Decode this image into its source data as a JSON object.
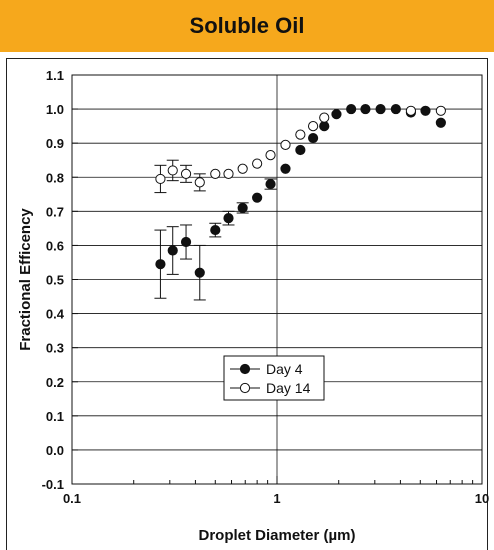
{
  "header": {
    "title": "Soluble Oil",
    "color": "#f6a81c"
  },
  "chart_data": {
    "type": "scatter",
    "title": "Soluble Oil",
    "xlabel": "Droplet Diameter (µm)",
    "ylabel": "Fractional Efficency",
    "xscale": "log",
    "xlim": [
      0.1,
      10
    ],
    "ylim": [
      -0.1,
      1.1
    ],
    "x_ticks": [
      "0.1",
      "1",
      "10"
    ],
    "y_ticks": [
      "-0.1",
      "0.0",
      "0.1",
      "0.2",
      "0.3",
      "0.4",
      "0.5",
      "0.6",
      "0.7",
      "0.8",
      "0.9",
      "1.0",
      "1.1"
    ],
    "grid": "horizontal lines at each 0.1, vertical line at x=1",
    "legend_position": "center",
    "series": [
      {
        "name": "Day 4",
        "marker": "filled-circle",
        "x": [
          0.27,
          0.31,
          0.36,
          0.42,
          0.5,
          0.58,
          0.68,
          0.8,
          0.93,
          1.1,
          1.3,
          1.5,
          1.7,
          1.95,
          2.3,
          2.7,
          3.2,
          3.8,
          4.5,
          5.3,
          6.3
        ],
        "y": [
          0.545,
          0.585,
          0.61,
          0.52,
          0.645,
          0.68,
          0.71,
          0.74,
          0.78,
          0.825,
          0.88,
          0.915,
          0.95,
          0.985,
          1.0,
          1.0,
          1.0,
          1.0,
          0.99,
          0.995,
          0.96
        ],
        "y_err": [
          0.1,
          0.07,
          0.05,
          0.08,
          0.02,
          0.02,
          0.015,
          0.01,
          0.015,
          0.01,
          0.01,
          0.01,
          0.01,
          0.01,
          0.005,
          0.005,
          0.005,
          0.005,
          0.005,
          0.005,
          0.005
        ]
      },
      {
        "name": "Day 14",
        "marker": "open-circle",
        "x": [
          0.27,
          0.31,
          0.36,
          0.42,
          0.5,
          0.58,
          0.68,
          0.8,
          0.93,
          1.1,
          1.3,
          1.5,
          1.7,
          4.5,
          6.3
        ],
        "y": [
          0.795,
          0.82,
          0.81,
          0.785,
          0.81,
          0.81,
          0.825,
          0.84,
          0.865,
          0.895,
          0.925,
          0.95,
          0.975,
          0.995,
          0.995
        ],
        "y_err": [
          0.04,
          0.03,
          0.025,
          0.025,
          0.01,
          0.01,
          0.01,
          0.01,
          0.01,
          0.01,
          0.005,
          0.005,
          0.005,
          0.005,
          0.005
        ]
      }
    ]
  }
}
